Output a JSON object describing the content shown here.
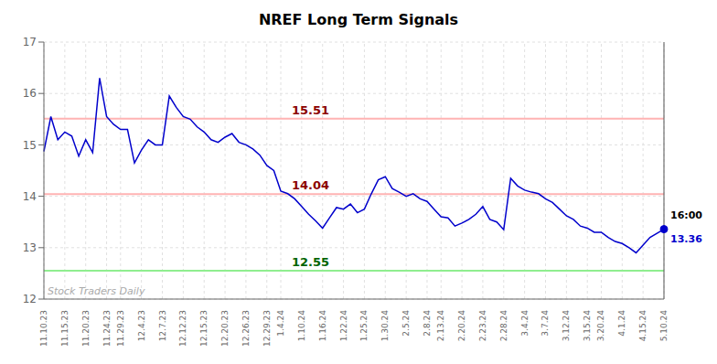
{
  "chart_data": {
    "type": "line",
    "title": "NREF Long Term Signals",
    "categories": [
      "11.10.23",
      null,
      null,
      "11.15.23",
      null,
      null,
      "11.20.23",
      null,
      null,
      "11.24.23",
      null,
      "11.29.23",
      null,
      null,
      "12.4.23",
      null,
      null,
      "12.7.23",
      null,
      null,
      "12.12.23",
      null,
      null,
      "12.15.23",
      null,
      null,
      "12.20.23",
      null,
      null,
      "12.26.23",
      null,
      null,
      "12.29.23",
      null,
      "1.4.24",
      null,
      null,
      "1.10.24",
      null,
      null,
      "1.16.24",
      null,
      null,
      "1.22.24",
      null,
      null,
      "1.25.24",
      null,
      null,
      "1.30.24",
      null,
      null,
      "2.5.24",
      null,
      null,
      "2.8.24",
      null,
      "2.13.24",
      null,
      null,
      "2.20.24",
      null,
      null,
      "2.23.24",
      null,
      null,
      "2.28.24",
      null,
      null,
      "3.4.24",
      null,
      null,
      "3.7.24",
      null,
      null,
      "3.12.24",
      null,
      null,
      "3.15.24",
      null,
      "3.20.24",
      null,
      null,
      "4.1.24",
      null,
      null,
      "4.15.24",
      null,
      null,
      "5.10.24"
    ],
    "values": [
      14.87,
      15.55,
      15.1,
      15.25,
      15.17,
      14.78,
      15.1,
      14.85,
      16.3,
      15.55,
      15.4,
      15.3,
      15.3,
      14.65,
      14.9,
      15.1,
      15.0,
      15.0,
      15.95,
      15.73,
      15.55,
      15.5,
      15.35,
      15.25,
      15.1,
      15.05,
      15.15,
      15.22,
      15.05,
      15.0,
      14.92,
      14.8,
      14.6,
      14.5,
      14.1,
      14.05,
      13.95,
      13.8,
      13.65,
      13.52,
      13.38,
      13.58,
      13.78,
      13.75,
      13.85,
      13.68,
      13.75,
      14.05,
      14.32,
      14.38,
      14.15,
      14.08,
      14.0,
      14.05,
      13.95,
      13.9,
      13.75,
      13.6,
      13.58,
      13.42,
      13.48,
      13.55,
      13.65,
      13.8,
      13.55,
      13.5,
      13.35,
      14.35,
      14.2,
      14.12,
      14.08,
      14.05,
      13.95,
      13.88,
      13.75,
      13.62,
      13.55,
      13.42,
      13.38,
      13.3,
      13.3,
      13.2,
      13.12,
      13.08,
      13.0,
      12.9,
      13.05,
      13.2,
      13.28,
      13.36
    ],
    "color": "#0000cc",
    "ylim": [
      12,
      17
    ],
    "yticks": [
      12,
      13,
      14,
      15,
      16,
      17
    ],
    "grid": true,
    "hlines": [
      {
        "value": 15.51,
        "label": "15.51",
        "color": "#ffb3b3",
        "label_color": "#8b0000"
      },
      {
        "value": 14.04,
        "label": "14.04",
        "color": "#ffb3b3",
        "label_color": "#8b0000"
      },
      {
        "value": 12.55,
        "label": "12.55",
        "color": "#90ee90",
        "label_color": "#006400"
      }
    ],
    "end_label": {
      "value": 13.36,
      "label": "13.36",
      "time": "16:00"
    },
    "watermark": "Stock Traders Daily"
  }
}
